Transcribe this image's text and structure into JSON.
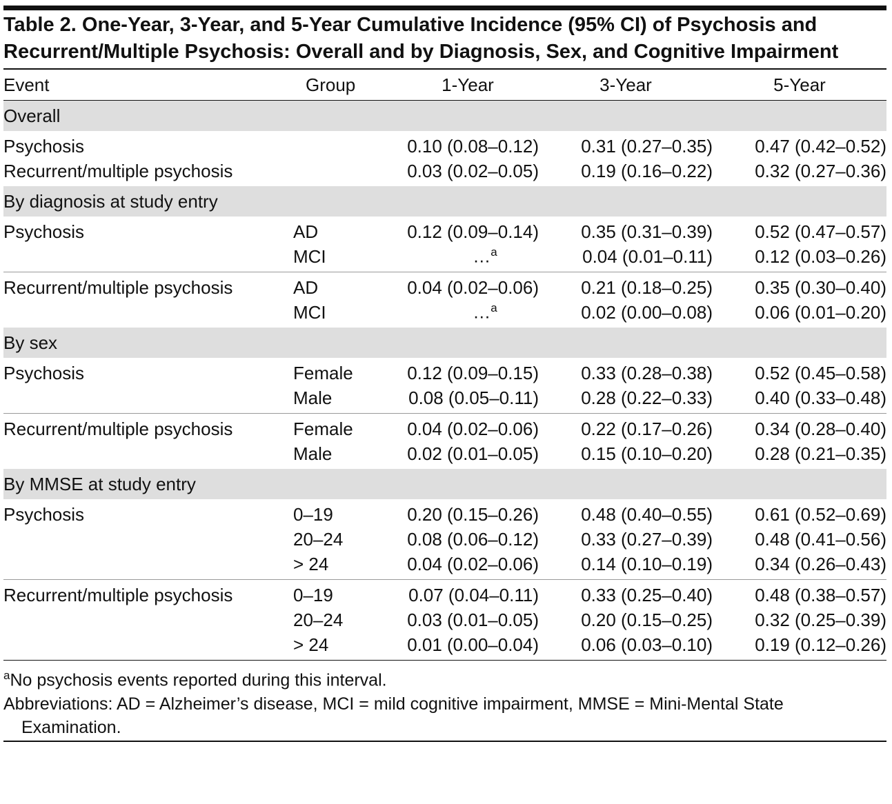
{
  "title": "Table 2. One-Year, 3-Year, and 5-Year Cumulative Incidence (95% CI) of Psychosis and Recurrent/Multiple Psychosis: Overall and by Diagnosis, Sex, and Cognitive Impairment",
  "header": [
    "Event",
    "Group",
    "1-Year",
    "3-Year",
    "5-Year"
  ],
  "sections": [
    {
      "title": "Overall",
      "blocks": [
        {
          "rows": [
            {
              "event": "Psychosis",
              "cells": [
                "0.10 (0.08–0.12)",
                "0.31 (0.27–0.35)",
                "0.47 (0.42–0.52)"
              ]
            },
            {
              "event": "Recurrent/multiple psychosis",
              "cells": [
                "0.03 (0.02–0.05)",
                "0.19 (0.16–0.22)",
                "0.32 (0.27–0.36)"
              ]
            }
          ]
        }
      ]
    },
    {
      "title": "By diagnosis at study entry",
      "blocks": [
        {
          "rows": [
            {
              "event": "Psychosis",
              "group": "AD",
              "cells": [
                "0.12 (0.09–0.14)",
                "0.35 (0.31–0.39)",
                "0.52 (0.47–0.57)"
              ]
            },
            {
              "group": "MCI",
              "cells": [
                {
                  "text": "…",
                  "note": "a"
                },
                "0.04 (0.01–0.11)",
                "0.12 (0.03–0.26)"
              ]
            }
          ]
        },
        {
          "rows": [
            {
              "event": "Recurrent/multiple psychosis",
              "group": "AD",
              "cells": [
                "0.04 (0.02–0.06)",
                "0.21 (0.18–0.25)",
                "0.35 (0.30–0.40)"
              ]
            },
            {
              "group": "MCI",
              "cells": [
                {
                  "text": "…",
                  "note": "a"
                },
                "0.02 (0.00–0.08)",
                "0.06 (0.01–0.20)"
              ]
            }
          ]
        }
      ]
    },
    {
      "title": "By sex",
      "blocks": [
        {
          "rows": [
            {
              "event": "Psychosis",
              "group": "Female",
              "cells": [
                "0.12 (0.09–0.15)",
                "0.33 (0.28–0.38)",
                "0.52 (0.45–0.58)"
              ]
            },
            {
              "group": "Male",
              "cells": [
                "0.08 (0.05–0.11)",
                "0.28 (0.22–0.33)",
                "0.40 (0.33–0.48)"
              ]
            }
          ]
        },
        {
          "rows": [
            {
              "event": "Recurrent/multiple psychosis",
              "group": "Female",
              "cells": [
                "0.04 (0.02–0.06)",
                "0.22 (0.17–0.26)",
                "0.34 (0.28–0.40)"
              ]
            },
            {
              "group": "Male",
              "cells": [
                "0.02 (0.01–0.05)",
                "0.15 (0.10–0.20)",
                "0.28 (0.21–0.35)"
              ]
            }
          ]
        }
      ]
    },
    {
      "title": "By MMSE at study entry",
      "blocks": [
        {
          "rows": [
            {
              "event": "Psychosis",
              "group": "0–19",
              "cells": [
                "0.20 (0.15–0.26)",
                "0.48 (0.40–0.55)",
                "0.61 (0.52–0.69)"
              ]
            },
            {
              "group": "20–24",
              "cells": [
                "0.08 (0.06–0.12)",
                "0.33 (0.27–0.39)",
                "0.48 (0.41–0.56)"
              ]
            },
            {
              "group": "> 24",
              "cells": [
                "0.04 (0.02–0.06)",
                "0.14 (0.10–0.19)",
                "0.34 (0.26–0.43)"
              ]
            }
          ]
        },
        {
          "rows": [
            {
              "event": "Recurrent/multiple psychosis",
              "group": "0–19",
              "cells": [
                "0.07 (0.04–0.11)",
                "0.33 (0.25–0.40)",
                "0.48 (0.38–0.57)"
              ]
            },
            {
              "group": "20–24",
              "cells": [
                "0.03 (0.01–0.05)",
                "0.20 (0.15–0.25)",
                "0.32 (0.25–0.39)"
              ]
            },
            {
              "group": "> 24",
              "cells": [
                "0.01 (0.00–0.04)",
                "0.06 (0.03–0.10)",
                "0.19 (0.12–0.26)"
              ]
            }
          ]
        }
      ]
    }
  ],
  "footnotes": [
    {
      "mark": "a",
      "text": "No psychosis events reported during this interval."
    },
    {
      "text": "Abbreviations: AD = Alzheimer’s disease, MCI = mild cognitive impairment, MMSE = Mini-Mental State Examination."
    }
  ]
}
